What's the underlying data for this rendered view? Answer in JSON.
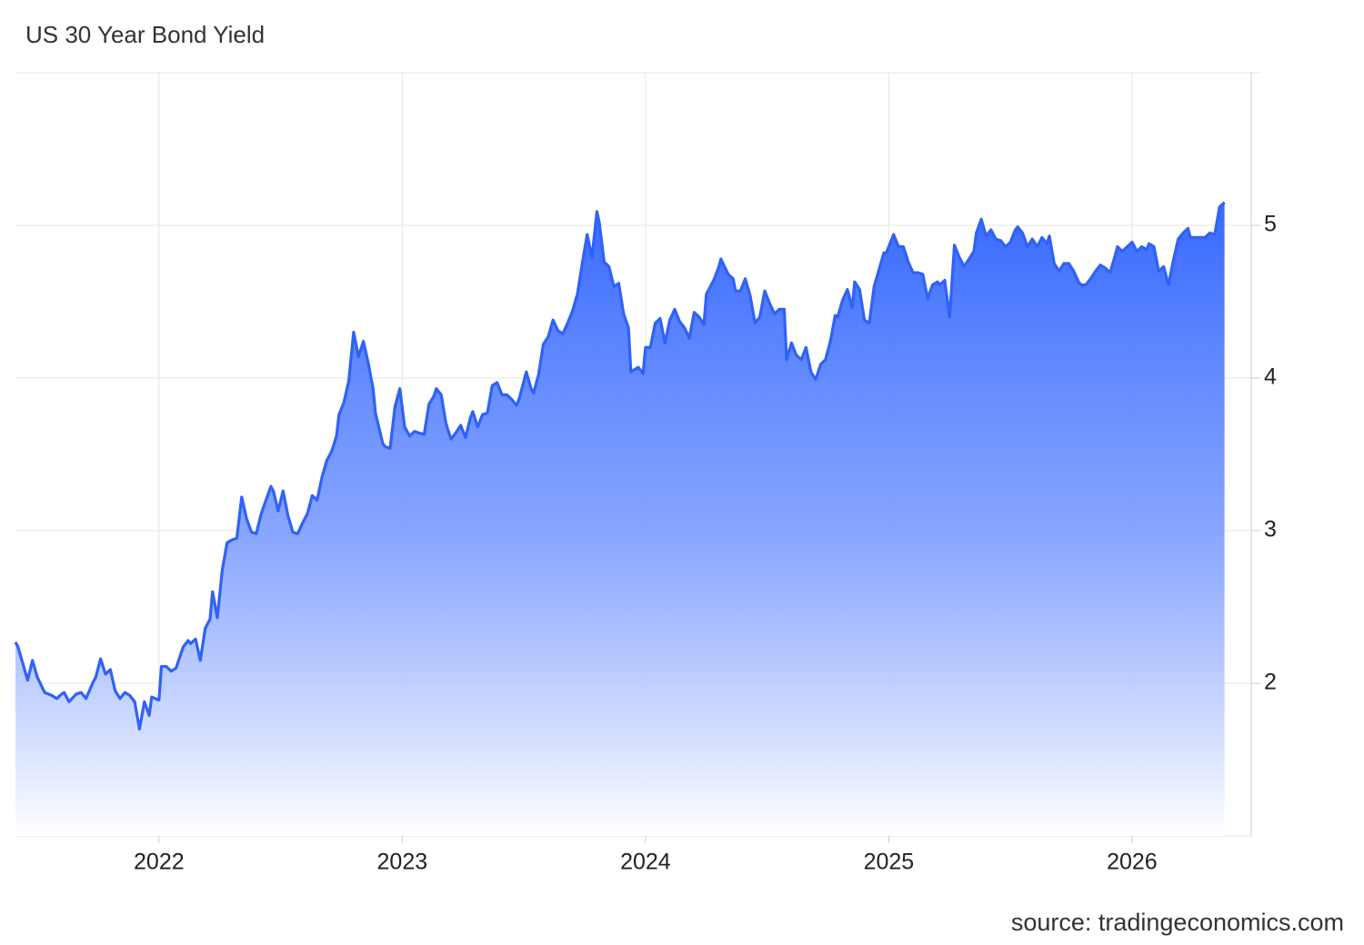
{
  "chart_data": {
    "type": "area",
    "title": "US 30 Year Bond Yield",
    "source": "source: tradingeconomics.com",
    "color": "#2f62f6",
    "grid": true,
    "y_axis_side": "right",
    "xlim": [
      2021.41,
      2026.49
    ],
    "xticks": [
      2022,
      2023,
      2024,
      2025,
      2026
    ],
    "ylim": [
      1,
      6
    ],
    "yticks": [
      2,
      3,
      4,
      5
    ],
    "x": [
      2021.41,
      2021.42,
      2021.46,
      2021.48,
      2021.5,
      2021.53,
      2021.56,
      2021.58,
      2021.6,
      2021.61,
      2021.63,
      2021.66,
      2021.68,
      2021.7,
      2021.73,
      2021.74,
      2021.76,
      2021.78,
      2021.8,
      2021.82,
      2021.84,
      2021.86,
      2021.88,
      2021.9,
      2021.92,
      2021.94,
      2021.96,
      2021.97,
      2022.0,
      2022.01,
      2022.03,
      2022.05,
      2022.07,
      2022.1,
      2022.12,
      2022.13,
      2022.15,
      2022.17,
      2022.19,
      2022.21,
      2022.22,
      2022.24,
      2022.26,
      2022.28,
      2022.3,
      2022.32,
      2022.34,
      2022.36,
      2022.38,
      2022.4,
      2022.42,
      2022.46,
      2022.47,
      2022.49,
      2022.51,
      2022.53,
      2022.55,
      2022.57,
      2022.59,
      2022.61,
      2022.63,
      2022.65,
      2022.67,
      2022.69,
      2022.71,
      2022.73,
      2022.74,
      2022.76,
      2022.78,
      2022.8,
      2022.82,
      2022.84,
      2022.86,
      2022.88,
      2022.89,
      2022.92,
      2022.93,
      2022.95,
      2022.97,
      2022.99,
      2023.01,
      2023.03,
      2023.05,
      2023.07,
      2023.09,
      2023.11,
      2023.13,
      2023.14,
      2023.16,
      2023.18,
      2023.2,
      2023.22,
      2023.24,
      2023.26,
      2023.28,
      2023.29,
      2023.31,
      2023.33,
      2023.35,
      2023.37,
      2023.39,
      2023.41,
      2023.43,
      2023.45,
      2023.47,
      2023.48,
      2023.51,
      2023.53,
      2023.54,
      2023.56,
      2023.58,
      2023.6,
      2023.62,
      2023.64,
      2023.66,
      2023.68,
      2023.7,
      2023.72,
      2023.74,
      2023.76,
      2023.78,
      2023.8,
      2023.81,
      2023.83,
      2023.85,
      2023.87,
      2023.89,
      2023.91,
      2023.93,
      2023.94,
      2023.97,
      2023.99,
      2024.0,
      2024.02,
      2024.04,
      2024.06,
      2024.08,
      2024.1,
      2024.12,
      2024.14,
      2024.16,
      2024.18,
      2024.2,
      2024.22,
      2024.24,
      2024.25,
      2024.28,
      2024.3,
      2024.31,
      2024.34,
      2024.36,
      2024.37,
      2024.39,
      2024.41,
      2024.43,
      2024.45,
      2024.47,
      2024.49,
      2024.51,
      2024.53,
      2024.55,
      2024.57,
      2024.58,
      2024.6,
      2024.62,
      2024.64,
      2024.66,
      2024.68,
      2024.7,
      2024.72,
      2024.74,
      2024.76,
      2024.78,
      2024.79,
      2024.81,
      2024.83,
      2024.85,
      2024.86,
      2024.88,
      2024.9,
      2024.92,
      2024.94,
      2024.96,
      2024.98,
      2024.99,
      2025.02,
      2025.04,
      2025.06,
      2025.08,
      2025.1,
      2025.12,
      2025.14,
      2025.16,
      2025.18,
      2025.2,
      2025.21,
      2025.23,
      2025.25,
      2025.27,
      2025.29,
      2025.31,
      2025.33,
      2025.35,
      2025.36,
      2025.38,
      2025.4,
      2025.42,
      2025.44,
      2025.46,
      2025.48,
      2025.5,
      2025.52,
      2025.53,
      2025.55,
      2025.57,
      2025.59,
      2025.61,
      2025.63,
      2025.65,
      2025.66,
      2025.68,
      2025.7,
      2025.72,
      2025.74,
      2025.76,
      2025.78,
      2025.79,
      2025.81,
      2025.83,
      2025.85,
      2025.87,
      2025.89,
      2025.91,
      2025.93,
      2025.94,
      2025.96,
      2025.98,
      2026.0,
      2026.02,
      2026.04,
      2026.06,
      2026.07,
      2026.09,
      2026.11,
      2026.13,
      2026.15,
      2026.17,
      2026.19,
      2026.21,
      2026.23,
      2026.24,
      2026.26,
      2026.28,
      2026.3,
      2026.32,
      2026.34,
      2026.36,
      2026.38
    ],
    "values": [
      2.27,
      2.24,
      2.02,
      2.15,
      2.04,
      1.94,
      1.92,
      1.9,
      1.93,
      1.94,
      1.88,
      1.93,
      1.94,
      1.9,
      2.01,
      2.04,
      2.16,
      2.06,
      2.09,
      1.95,
      1.9,
      1.94,
      1.92,
      1.88,
      1.7,
      1.88,
      1.79,
      1.91,
      1.89,
      2.11,
      2.11,
      2.08,
      2.1,
      2.24,
      2.28,
      2.26,
      2.29,
      2.15,
      2.36,
      2.42,
      2.6,
      2.43,
      2.74,
      2.92,
      2.94,
      2.95,
      3.22,
      3.08,
      2.99,
      2.98,
      3.11,
      3.29,
      3.26,
      3.13,
      3.26,
      3.1,
      2.99,
      2.98,
      3.05,
      3.11,
      3.23,
      3.2,
      3.35,
      3.46,
      3.52,
      3.62,
      3.76,
      3.84,
      3.98,
      4.3,
      4.14,
      4.24,
      4.1,
      3.93,
      3.77,
      3.57,
      3.55,
      3.54,
      3.81,
      3.93,
      3.68,
      3.62,
      3.65,
      3.64,
      3.63,
      3.83,
      3.88,
      3.93,
      3.89,
      3.7,
      3.6,
      3.64,
      3.69,
      3.61,
      3.74,
      3.78,
      3.68,
      3.76,
      3.77,
      3.95,
      3.97,
      3.89,
      3.89,
      3.86,
      3.82,
      3.86,
      4.04,
      3.93,
      3.9,
      4.02,
      4.22,
      4.27,
      4.38,
      4.31,
      4.29,
      4.36,
      4.44,
      4.55,
      4.75,
      4.94,
      4.79,
      5.09,
      5.02,
      4.76,
      4.73,
      4.6,
      4.62,
      4.42,
      4.33,
      4.04,
      4.07,
      4.03,
      4.2,
      4.2,
      4.36,
      4.39,
      4.23,
      4.38,
      4.45,
      4.37,
      4.33,
      4.26,
      4.43,
      4.4,
      4.35,
      4.55,
      4.64,
      4.72,
      4.78,
      4.68,
      4.65,
      4.57,
      4.57,
      4.65,
      4.54,
      4.36,
      4.4,
      4.57,
      4.49,
      4.42,
      4.45,
      4.45,
      4.12,
      4.23,
      4.15,
      4.12,
      4.2,
      4.04,
      3.99,
      4.09,
      4.12,
      4.24,
      4.41,
      4.4,
      4.51,
      4.58,
      4.46,
      4.63,
      4.58,
      4.38,
      4.36,
      4.6,
      4.71,
      4.82,
      4.82,
      4.94,
      4.86,
      4.86,
      4.76,
      4.69,
      4.69,
      4.68,
      4.52,
      4.61,
      4.63,
      4.61,
      4.64,
      4.4,
      4.87,
      4.79,
      4.73,
      4.78,
      4.83,
      4.95,
      5.04,
      4.93,
      4.97,
      4.91,
      4.9,
      4.86,
      4.89,
      4.97,
      4.99,
      4.95,
      4.86,
      4.91,
      4.86,
      4.92,
      4.88,
      4.93,
      4.75,
      4.7,
      4.75,
      4.75,
      4.7,
      4.63,
      4.61,
      4.61,
      4.65,
      4.7,
      4.74,
      4.72,
      4.69,
      4.8,
      4.86,
      4.83,
      4.86,
      4.89,
      4.83,
      4.86,
      4.84,
      4.88,
      4.86,
      4.7,
      4.73,
      4.61,
      4.77,
      4.91,
      4.95,
      4.98,
      4.92,
      4.92,
      4.92,
      4.92,
      4.95,
      4.94,
      5.12,
      5.15
    ]
  }
}
